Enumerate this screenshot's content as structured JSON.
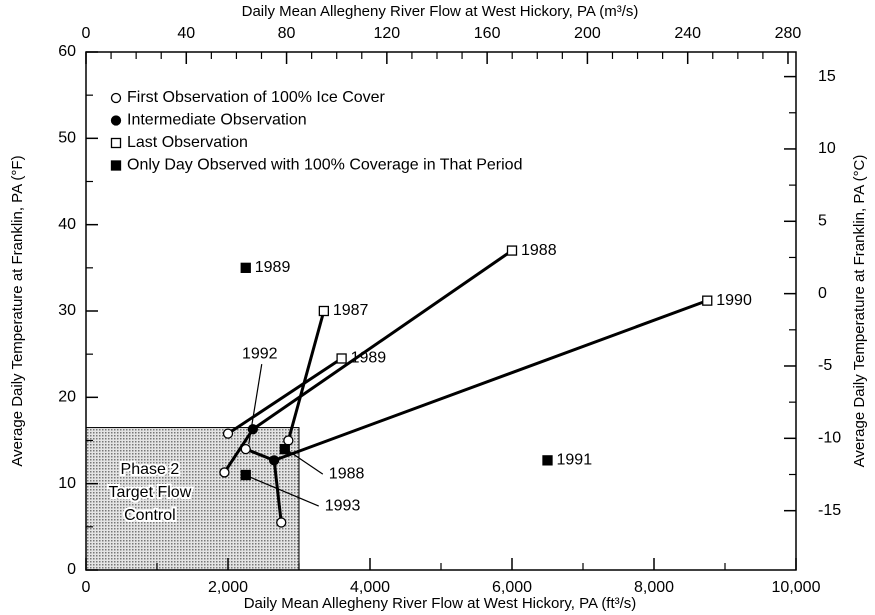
{
  "chart_data": {
    "type": "scatter",
    "title_top": "Daily Mean Allegheny River Flow at West Hickory, PA (m³/s)",
    "x_label": "Daily Mean Allegheny River Flow at West Hickory, PA (ft³/s)",
    "y_label": "Average Daily Temperature at Franklin, PA (°F)",
    "y2_label": "Average Daily Temperature at Franklin, PA (°C)",
    "xlim": [
      0,
      10000
    ],
    "xticks": [
      0,
      {
        "value": 2000,
        "label": "2,000"
      },
      {
        "value": 4000,
        "label": "4,000"
      },
      {
        "value": 6000,
        "label": "6,000"
      },
      {
        "value": 8000,
        "label": "8,000"
      },
      {
        "value": 10000,
        "label": "10,000"
      }
    ],
    "x2lim": [
      0,
      283.2
    ],
    "x2ticks": [
      0,
      40,
      80,
      120,
      160,
      200,
      240,
      280
    ],
    "ylim": [
      0,
      60
    ],
    "yticks": [
      0,
      10,
      20,
      30,
      40,
      50,
      60
    ],
    "y2lim": [
      -19.1,
      16.7
    ],
    "y2ticks": [
      -15,
      -10,
      -5,
      0,
      5,
      10,
      15
    ],
    "region": {
      "x": [
        0,
        3000
      ],
      "y": [
        0,
        16.5
      ],
      "label": [
        "Phase 2",
        "Target Flow",
        "Control"
      ]
    },
    "series": [
      {
        "name": "First Observation of 100% Ice Cover",
        "marker": "open-circle",
        "color": "#000000",
        "x": [
          2000,
          1950,
          2250,
          2850,
          2750
        ],
        "values": [
          15.8,
          11.3,
          14,
          15,
          5.5
        ],
        "labels": [
          null,
          null,
          "1992",
          null,
          null
        ]
      },
      {
        "name": "Intermediate Observation",
        "marker": "filled-circle",
        "color": "#000000",
        "x": [
          2350,
          2650
        ],
        "values": [
          16.3,
          12.7
        ],
        "labels": [
          null,
          null
        ]
      },
      {
        "name": "Last Observation",
        "marker": "open-square",
        "color": "#000000",
        "x": [
          3350,
          3600,
          6000,
          8750
        ],
        "values": [
          30,
          24.5,
          37,
          31.2
        ],
        "labels": [
          "1987",
          "1989",
          "1988",
          "1990"
        ]
      },
      {
        "name": "Only Day Observed with 100% Coverage in That Period",
        "marker": "filled-square",
        "color": "#000000",
        "x": [
          2250,
          2800,
          2250,
          6500
        ],
        "values": [
          35,
          14,
          11,
          12.7
        ],
        "labels": [
          "1989",
          "1988",
          "1993",
          "1991"
        ]
      }
    ],
    "lines": [
      {
        "x": [
          2000,
          3600
        ],
        "y": [
          15.8,
          24.5
        ]
      },
      {
        "x": [
          2350,
          6000
        ],
        "y": [
          16.3,
          37
        ]
      },
      {
        "x": [
          2850,
          3350
        ],
        "y": [
          15,
          30
        ]
      },
      {
        "x": [
          1950,
          2350
        ],
        "y": [
          11.3,
          16.3
        ]
      },
      {
        "x": [
          2650,
          8750
        ],
        "y": [
          12.7,
          31.2
        ]
      },
      {
        "x": [
          2650,
          2750
        ],
        "y": [
          12.7,
          5.5
        ]
      },
      {
        "x": [
          2250,
          2650
        ],
        "y": [
          14,
          12.7
        ]
      }
    ]
  }
}
